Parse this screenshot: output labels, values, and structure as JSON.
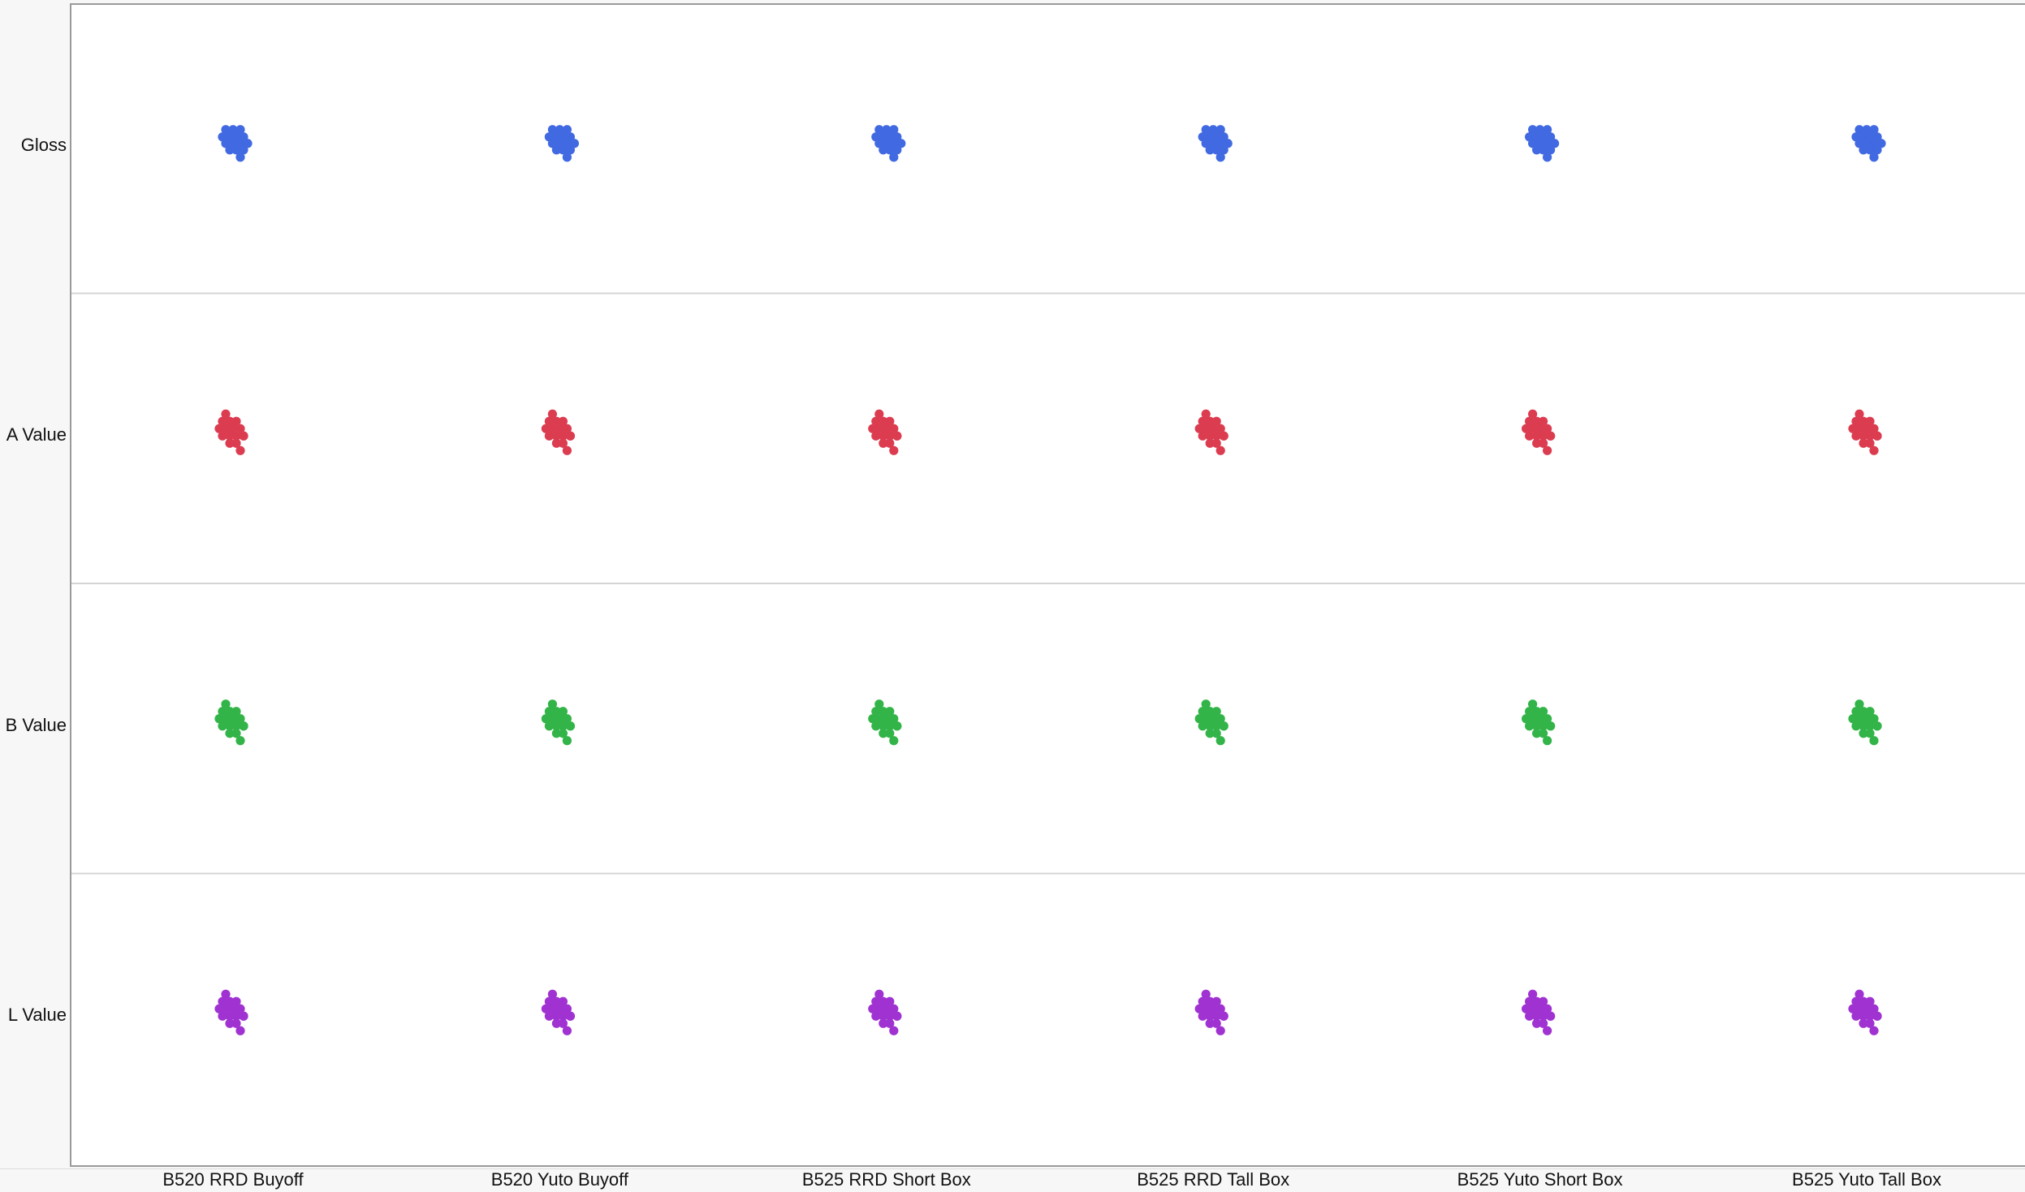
{
  "chart_data": {
    "type": "scatter",
    "categories": [
      "B520 RRD Buyoff",
      "B520 Yuto Buyoff",
      "B525 RRD Short Box",
      "B525 RRD Tall Box",
      "B525 Yuto Short Box",
      "B525 Yuto Tall Box"
    ],
    "rows": [
      "Gloss",
      "A Value",
      "B Value",
      "L Value"
    ],
    "series": [
      {
        "row": "Gloss",
        "color": "#4169e1",
        "points_per_category": 16
      },
      {
        "row": "A Value",
        "color": "#dc3c50",
        "points_per_category": 16
      },
      {
        "row": "B Value",
        "color": "#32b448",
        "points_per_category": 16
      },
      {
        "row": "L Value",
        "color": "#a032d2",
        "points_per_category": 16
      }
    ],
    "grid": true
  }
}
